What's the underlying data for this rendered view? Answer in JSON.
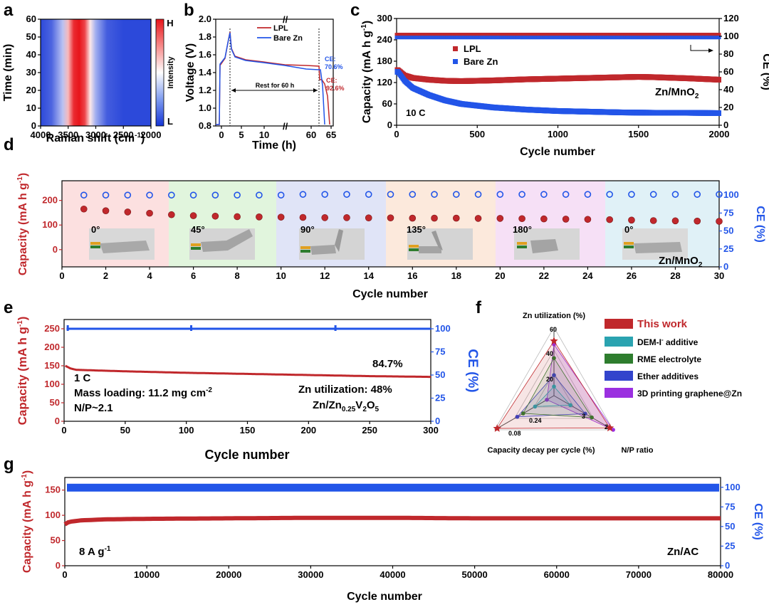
{
  "colors": {
    "lpl": "#c0282c",
    "bare": "#2255e8",
    "ce": "#2255e8",
    "cap": "#c0282c"
  },
  "chart_data": [
    {
      "id": "a",
      "type": "heatmap",
      "panel": "a",
      "title": "",
      "xlabel": "Raman shift (cm-1)",
      "ylabel": "Time (min)",
      "xlim": [
        4000,
        2000
      ],
      "ylim": [
        0,
        60
      ],
      "x_ticks": [
        4000,
        3500,
        3000,
        2500,
        2000
      ],
      "y_ticks": [
        0,
        10,
        20,
        30,
        40,
        50,
        60
      ],
      "colorbar": {
        "label": "Intensity",
        "high": "H",
        "low": "L"
      },
      "profile_x": [
        4000,
        3800,
        3600,
        3500,
        3400,
        3300,
        3200,
        3100,
        3000,
        2800,
        2500,
        2000
      ],
      "profile_intensity": [
        0.05,
        0.12,
        0.35,
        0.65,
        0.95,
        1.0,
        0.9,
        0.55,
        0.3,
        0.1,
        0.05,
        0.05
      ]
    },
    {
      "id": "b",
      "type": "line",
      "panel": "b",
      "xlabel": "Time (h)",
      "ylabel": "Voltage (V)",
      "ylim": [
        0.8,
        2.0
      ],
      "y_ticks": [
        0.8,
        1.0,
        1.2,
        1.4,
        1.6,
        1.8,
        2.0
      ],
      "x_ticks": [
        "0",
        "5",
        "10",
        "60",
        "65"
      ],
      "series": [
        {
          "name": "LPL",
          "color": "#c0282c"
        },
        {
          "name": "Bare Zn",
          "color": "#2255e8"
        }
      ],
      "rest_label": "Rest for 60 h",
      "ce_labels": [
        {
          "text": "CE:",
          "value": "70.6%",
          "color": "#2255e8"
        },
        {
          "text": "CE:",
          "value": "92.6%",
          "color": "#c0282c"
        }
      ]
    },
    {
      "id": "c",
      "type": "scatter",
      "panel": "c",
      "xlabel": "Cycle number",
      "ylabel": "Capacity (mA h g-1)",
      "y2label": "CE (%)",
      "xlim": [
        0,
        2000
      ],
      "ylim": [
        0,
        300
      ],
      "y2lim": [
        0,
        120
      ],
      "x_ticks": [
        0,
        500,
        1000,
        1500,
        2000
      ],
      "y_ticks": [
        0,
        60,
        120,
        180,
        240,
        300
      ],
      "y2_ticks": [
        0,
        20,
        40,
        60,
        80,
        100,
        120
      ],
      "series": [
        {
          "name": "LPL",
          "color": "#c0282c",
          "x": [
            10,
            50,
            100,
            200,
            300,
            400,
            600,
            800,
            1000,
            1200,
            1400,
            1500,
            1600,
            1800,
            2000
          ],
          "values": [
            155,
            140,
            133,
            128,
            125,
            124,
            126,
            129,
            131,
            133,
            135,
            136,
            135,
            132,
            128
          ]
        },
        {
          "name": "Bare Zn",
          "color": "#2255e8",
          "x": [
            10,
            50,
            100,
            200,
            300,
            400,
            600,
            800,
            1000,
            1200,
            1400,
            1600,
            1800,
            2000
          ],
          "values": [
            150,
            125,
            105,
            85,
            70,
            60,
            50,
            44,
            40,
            38,
            36,
            35,
            35,
            34
          ]
        }
      ],
      "ce_value": 100,
      "annotations": [
        "Zn/MnO2",
        "10 C"
      ]
    },
    {
      "id": "d",
      "type": "scatter",
      "panel": "d",
      "xlabel": "Cycle number",
      "ylabel": "Capacity (mA h g-1)",
      "y2label": "CE (%)",
      "xlim": [
        0,
        30
      ],
      "ylim": [
        -70,
        280
      ],
      "y2lim": [
        0,
        120
      ],
      "x_ticks": [
        0,
        2,
        4,
        6,
        8,
        10,
        12,
        14,
        16,
        18,
        20,
        22,
        24,
        26,
        28,
        30
      ],
      "y_ticks": [
        0,
        100,
        200
      ],
      "y2_ticks": [
        0,
        25,
        50,
        75,
        100
      ],
      "x": [
        1,
        2,
        3,
        4,
        5,
        6,
        7,
        8,
        9,
        10,
        11,
        12,
        13,
        14,
        15,
        16,
        17,
        18,
        19,
        20,
        21,
        22,
        23,
        24,
        25,
        26,
        27,
        28,
        29,
        30
      ],
      "capacity": [
        165,
        158,
        153,
        148,
        142,
        138,
        136,
        134,
        133,
        132,
        131,
        130,
        130,
        129,
        129,
        128,
        128,
        128,
        127,
        127,
        126,
        125,
        124,
        123,
        122,
        120,
        118,
        117,
        116,
        115
      ],
      "ce": [
        100,
        100,
        100,
        100,
        100,
        100,
        100,
        100,
        100,
        100,
        101,
        101,
        101,
        101,
        101,
        101,
        101,
        101,
        101,
        101,
        101,
        101,
        101,
        101,
        101,
        101,
        101,
        101,
        101,
        101
      ],
      "bend_angles": [
        "0°",
        "45°",
        "90°",
        "135°",
        "180°",
        "0°"
      ],
      "annotation": "Zn/MnO2"
    },
    {
      "id": "e",
      "type": "line",
      "panel": "e",
      "xlabel": "Cycle number",
      "ylabel": "Capacity (mA h g-1)",
      "y2label": "CE (%)",
      "xlim": [
        0,
        300
      ],
      "ylim": [
        0,
        275
      ],
      "y2lim": [
        0,
        110
      ],
      "x_ticks": [
        0,
        50,
        100,
        150,
        200,
        250,
        300
      ],
      "y_ticks": [
        0,
        50,
        100,
        150,
        200,
        250
      ],
      "y2_ticks": [
        0,
        25,
        50,
        75,
        100
      ],
      "x": [
        1,
        5,
        10,
        20,
        50,
        100,
        150,
        200,
        250,
        300
      ],
      "capacity": [
        150,
        143,
        139,
        138,
        135,
        131,
        128,
        125,
        122,
        120
      ],
      "ce_value": 100,
      "annotations": {
        "retention": "84.7%",
        "rate": "1 C",
        "loading": "Mass loading: 11.2 mg cm-2",
        "np": "N/P~2.1",
        "util": "Zn utilization: 48%",
        "system": "Zn/Zn0.25V2O5"
      }
    },
    {
      "id": "f",
      "type": "radar",
      "panel": "f",
      "axes": [
        "Zn utilization (%)",
        "N/P ratio",
        "Capacity decay per cycle (%)"
      ],
      "tick_labels": {
        "util": [
          "20",
          "40",
          "60"
        ],
        "np": [
          "3",
          "2"
        ],
        "decay": [
          "0.24",
          "0.08"
        ]
      },
      "series": [
        {
          "name": "This work",
          "color": "#c0282c",
          "values": {
            "util": 48,
            "np": 2.1,
            "decay": 0.08
          }
        },
        {
          "name": "DEM-I- additive",
          "color": "#2aa3b0",
          "values": {
            "util": 8,
            "np": 4.5,
            "decay": 0.4
          }
        },
        {
          "name": "RME electrolyte",
          "color": "#2e7d2e",
          "values": {
            "util": 33,
            "np": 3.2,
            "decay": 0.3
          }
        },
        {
          "name": "Ether additives",
          "color": "#3344cc",
          "values": {
            "util": 18,
            "np": 3.6,
            "decay": 0.25
          }
        },
        {
          "name": "3D printing graphene@Zn",
          "color": "#9b30e0",
          "values": {
            "util": 45,
            "np": 1.8,
            "decay": 0.5
          }
        }
      ]
    },
    {
      "id": "g",
      "type": "line",
      "panel": "g",
      "xlabel": "Cycle number",
      "ylabel": "Capacity (mA h g-1)",
      "y2label": "CE (%)",
      "xlim": [
        0,
        80000
      ],
      "ylim": [
        0,
        175
      ],
      "y2lim": [
        0,
        112.5
      ],
      "x_ticks": [
        0,
        10000,
        20000,
        30000,
        40000,
        50000,
        60000,
        70000,
        80000
      ],
      "y_ticks": [
        0,
        50,
        100,
        150
      ],
      "y2_ticks": [
        0,
        25,
        50,
        75,
        100
      ],
      "x": [
        0,
        500,
        2000,
        5000,
        10000,
        20000,
        30000,
        40000,
        50000,
        60000,
        70000,
        80000
      ],
      "capacity": [
        82,
        87,
        90,
        92,
        93,
        94,
        95,
        95,
        94,
        94,
        94,
        94
      ],
      "ce_value": 100,
      "annotations": {
        "rate": "8 A g-1",
        "system": "Zn/AC"
      }
    }
  ],
  "labels": {
    "panels": [
      "a",
      "b",
      "c",
      "d",
      "e",
      "f",
      "g"
    ],
    "a_xlabel_main": "Raman shift (cm",
    "a_xlabel_sup": "-1",
    "a_xlabel_end": ")",
    "a_ylabel": "Time (min)",
    "a_cbar": "Intensity",
    "a_H": "H",
    "a_L": "L",
    "b_xlabel": "Time (h)",
    "b_ylabel": "Voltage (V)",
    "b_rest": "Rest for 60 h",
    "b_ce1a": "CE:",
    "b_ce1b": "70.6%",
    "b_ce2a": "CE:",
    "b_ce2b": "92.6%",
    "b_leg1": "LPL",
    "b_leg2": "Bare Zn",
    "cap_ylabel_main": "Capacity (mA h g",
    "cap_ylabel_sup": "-1",
    "cap_ylabel_end": ")",
    "ce_ylabel": "CE (%)",
    "cycle_number": "Cycle number",
    "c_leg1": "LPL",
    "c_leg2": "Bare Zn",
    "c_sys_main": "Zn/MnO",
    "c_sys_sub": "2",
    "c_rate": "10 C",
    "d_sys_main": "Zn/MnO",
    "d_sys_sub": "2",
    "e_ret": "84.7%",
    "e_rate": "1 C",
    "e_load_main": "Mass loading: 11.2 mg cm",
    "e_load_sup": "-2",
    "e_np": "N/P~2.1",
    "e_util": "Zn utilization: 48%",
    "e_sys_a": "Zn/Zn",
    "e_sys_b": "0.25",
    "e_sys_c": "V",
    "e_sys_d": "2",
    "e_sys_e": "O",
    "e_sys_f": "5",
    "f_ax1": "Zn utilization (%)",
    "f_ax2": "N/P ratio",
    "f_ax3": "Capacity decay per cycle (%)",
    "f_t20": "20",
    "f_t40": "40",
    "f_t60": "60",
    "f_t3": "3",
    "f_t2": "2",
    "f_t024": "0.24",
    "f_t008": "0.08",
    "f_leg1": "This work",
    "f_leg2a": "DEM-I",
    "f_leg2b": "-",
    "f_leg2c": " additive",
    "f_leg3": "RME electrolyte",
    "f_leg4": "Ether additives",
    "f_leg5": "3D printing graphene@Zn",
    "g_rate_main": "8 A g",
    "g_rate_sup": "-1",
    "g_sys": "Zn/AC"
  }
}
